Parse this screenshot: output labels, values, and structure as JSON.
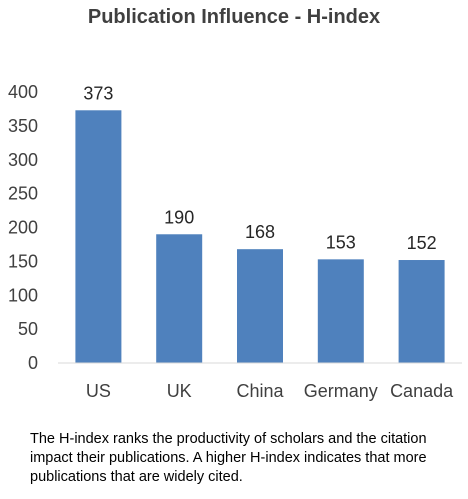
{
  "chart_data": {
    "type": "bar",
    "title": "Publication Influence - H-index",
    "categories": [
      "US",
      "UK",
      "China",
      "Germany",
      "Canada"
    ],
    "values": [
      373,
      190,
      168,
      153,
      152
    ],
    "ylim": [
      0,
      400
    ],
    "yticks": [
      0,
      50,
      100,
      150,
      200,
      250,
      300,
      350,
      400
    ],
    "grid": false,
    "bar_color": "#4f81bd",
    "data_labels": true
  },
  "caption": "The H-index ranks the productivity of scholars and the citation impact their publications.  A higher H-index indicates that more publications that are widely cited."
}
